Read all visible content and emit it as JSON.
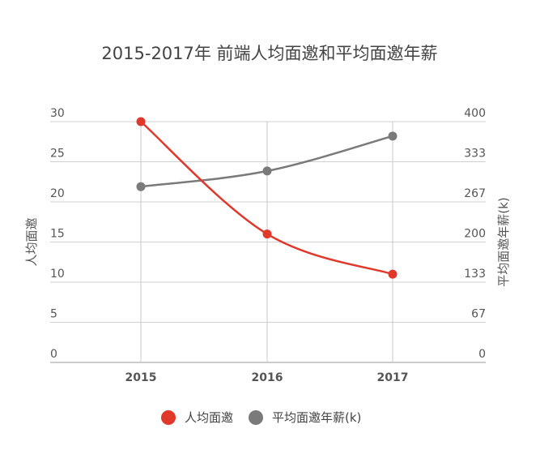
{
  "chart_data": {
    "type": "line",
    "title": "2015-2017年 前端人均面邀和平均面邀年薪",
    "categories": [
      "2015",
      "2016",
      "2017"
    ],
    "series": [
      {
        "name": "人均面邀",
        "axis": "left",
        "values": [
          30,
          16,
          11
        ],
        "color": "#e0392b"
      },
      {
        "name": "平均面邀年薪(k)",
        "axis": "right",
        "values": [
          292,
          318,
          376
        ],
        "color": "#7a7a7a"
      }
    ],
    "ylabel_left": "人均面邀",
    "ylabel_right": "平均面邀年薪(k)",
    "ylim_left": [
      0,
      30
    ],
    "ylim_right": [
      0,
      400
    ],
    "yticks_left": [
      "0",
      "5",
      "10",
      "15",
      "20",
      "25",
      "30"
    ],
    "yticks_right": [
      "0",
      "67",
      "133",
      "200",
      "267",
      "333",
      "400"
    ],
    "grid": true,
    "legend_position": "bottom-center"
  }
}
